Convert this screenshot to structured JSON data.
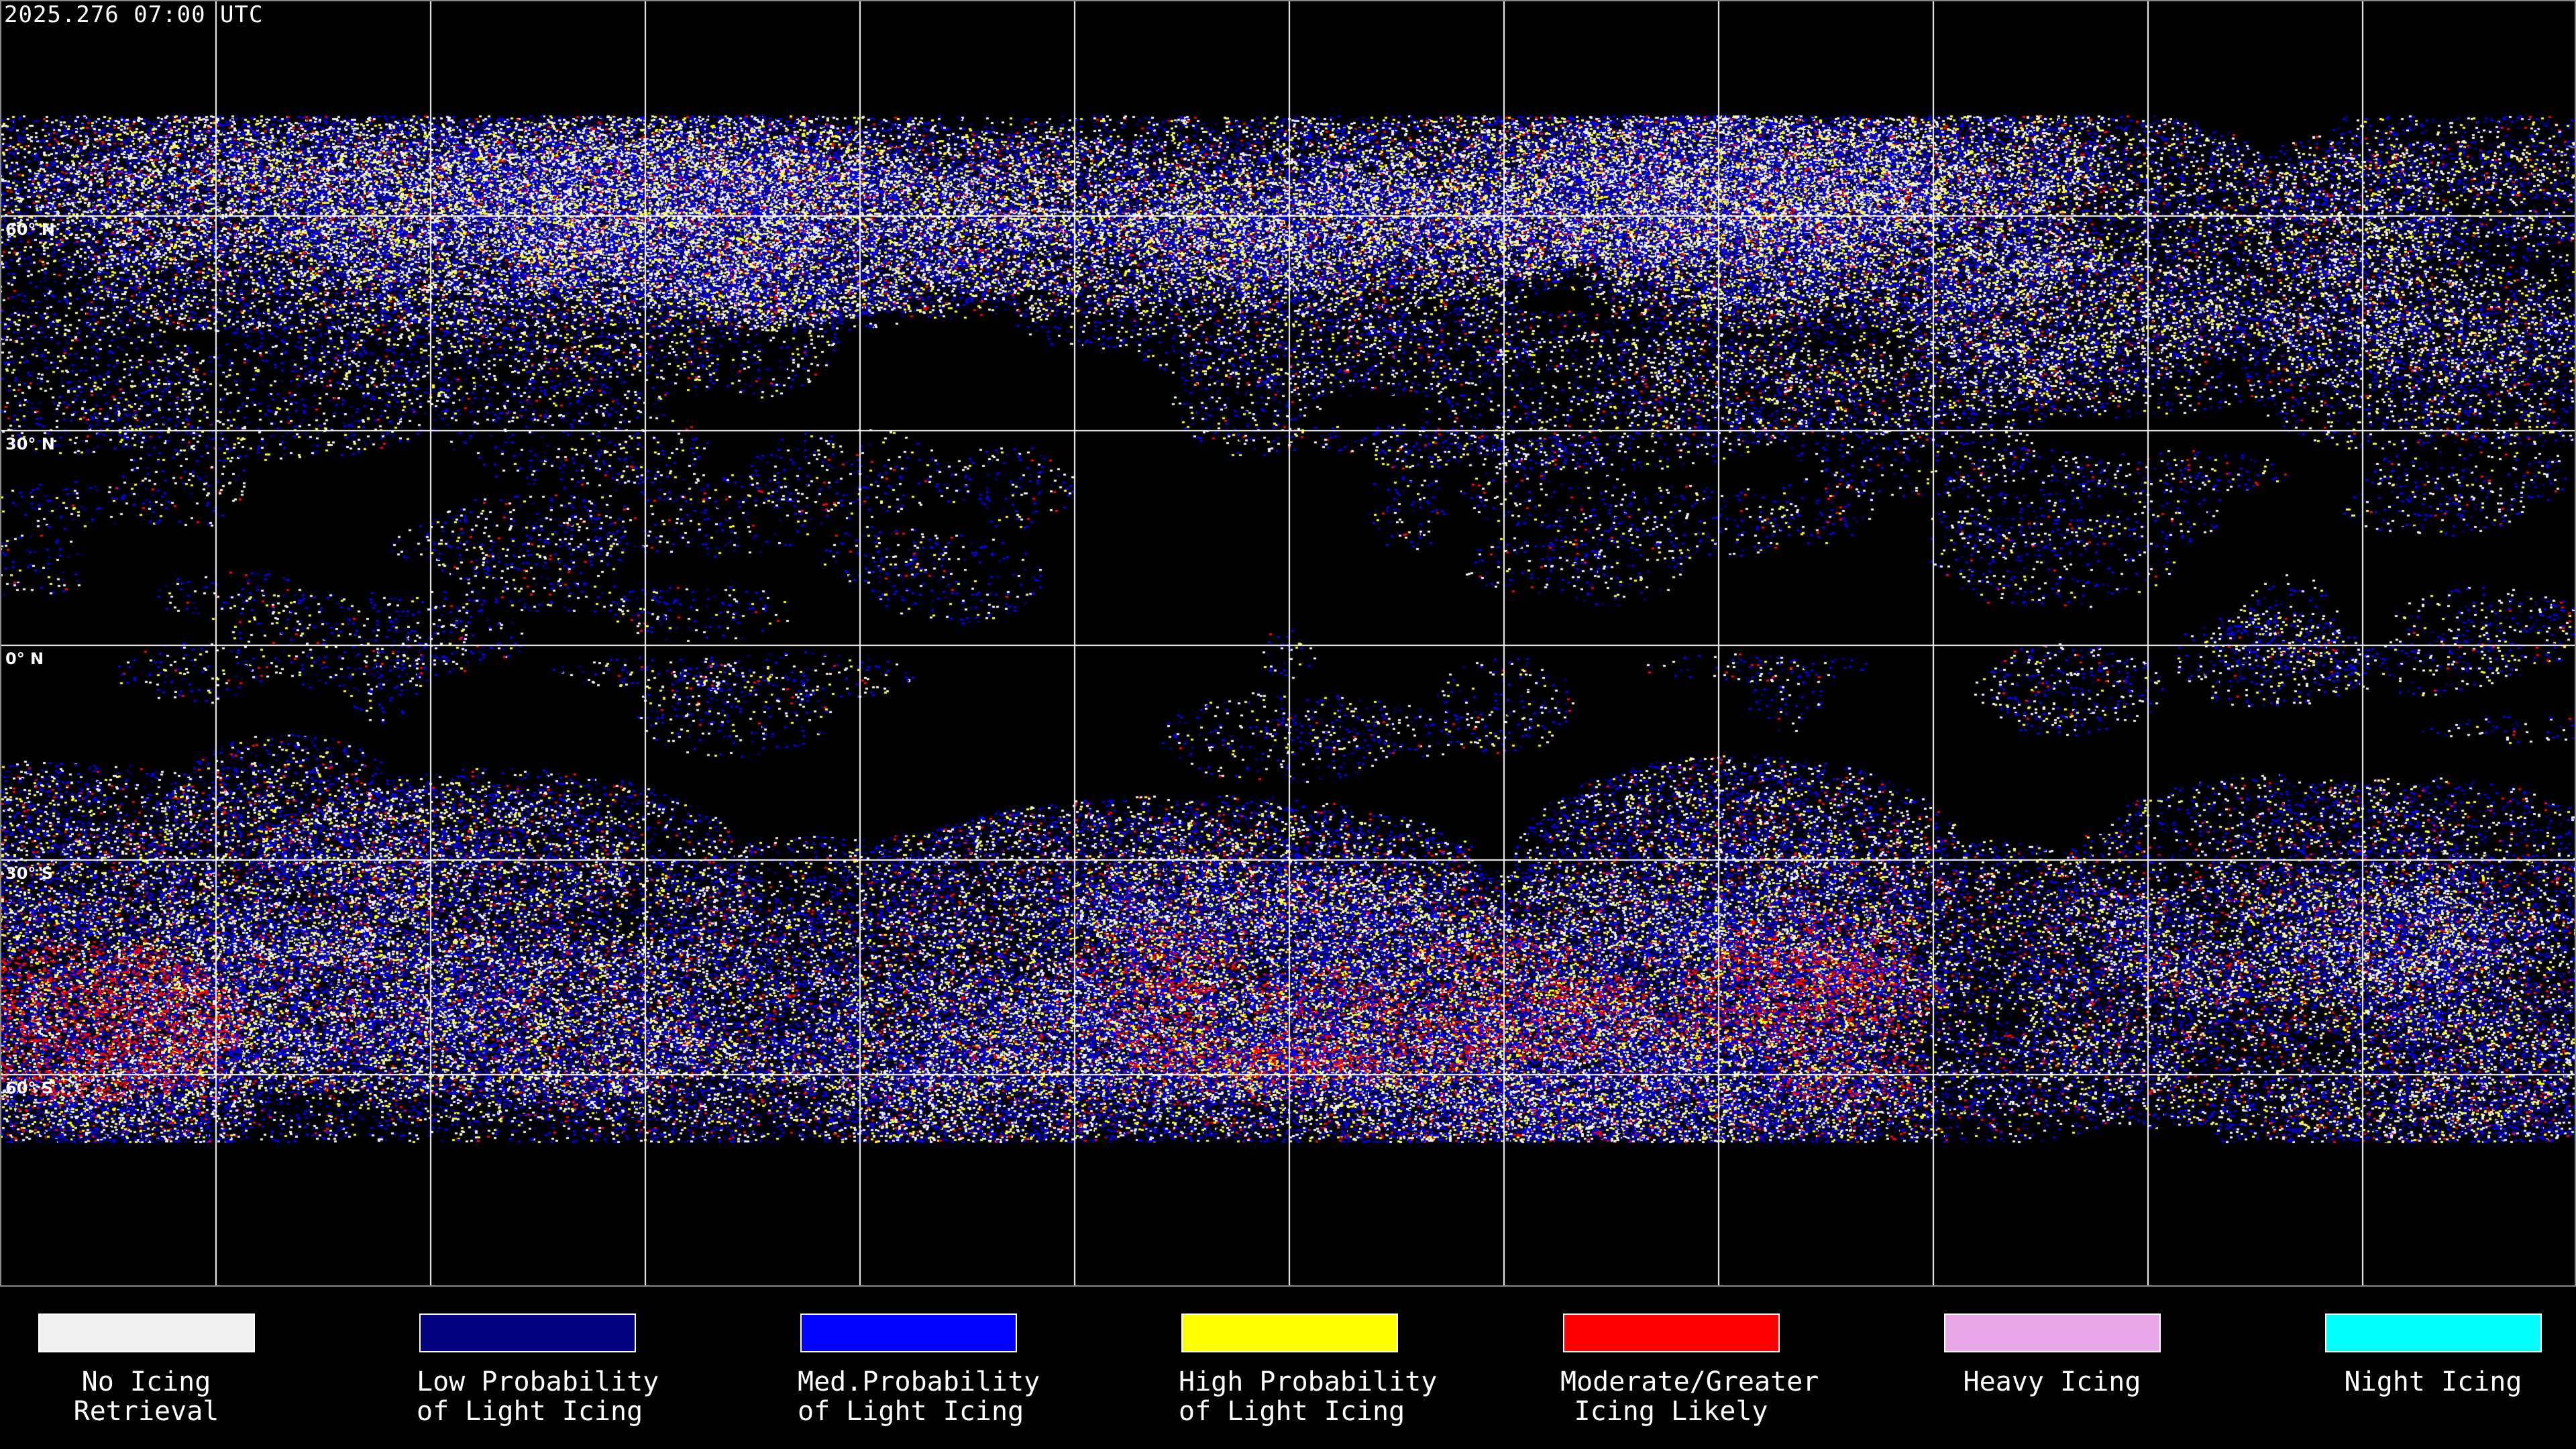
{
  "header": {
    "timestamp": "2025.276 07:00 UTC"
  },
  "map": {
    "projection": "equirectangular",
    "grid_spacing_degrees": 30,
    "latitude_labels": [
      "60° N",
      "30° N",
      "0° N",
      "30° S",
      "60° S"
    ]
  },
  "legend": [
    {
      "line1": "No Icing",
      "line2": "Retrieval",
      "color": "#f0f0f0"
    },
    {
      "line1": "Low Probability",
      "line2": "of Light Icing",
      "color": "#000080"
    },
    {
      "line1": "Med.Probability",
      "line2": "of Light Icing",
      "color": "#0000ff"
    },
    {
      "line1": "High Probability",
      "line2": "of Light Icing",
      "color": "#ffff00"
    },
    {
      "line1": "Moderate/Greater",
      "line2": "Icing Likely",
      "color": "#ff0000"
    },
    {
      "line1": "Heavy Icing",
      "line2": "",
      "color": "#e8a8e8"
    },
    {
      "line1": "Night Icing",
      "line2": "",
      "color": "#00ffff"
    }
  ]
}
